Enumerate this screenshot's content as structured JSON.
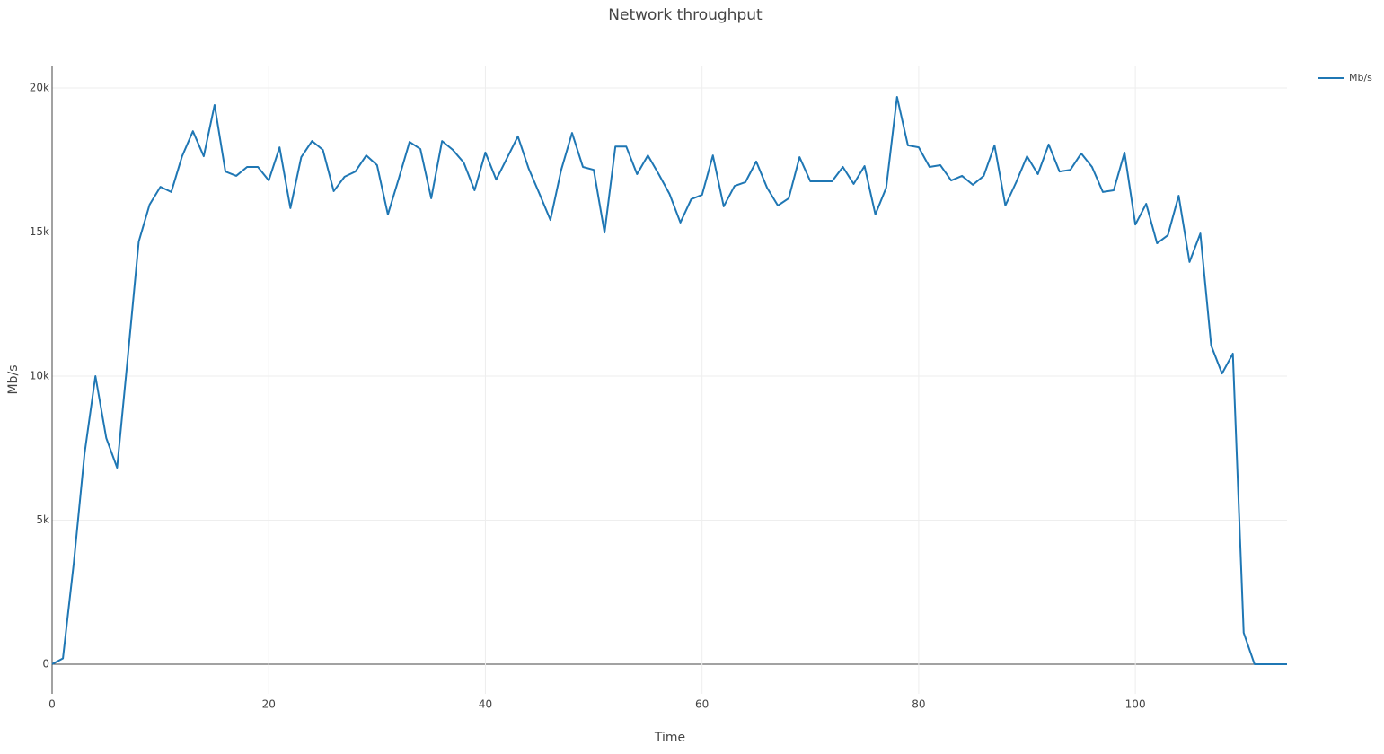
{
  "chart_data": {
    "type": "line",
    "title": "Network throughput",
    "x_label": "Time",
    "y_label": "Mb/s",
    "x": [
      0,
      1,
      2,
      3,
      4,
      5,
      6,
      7,
      8,
      9,
      10,
      11,
      12,
      13,
      14,
      15,
      16,
      17,
      18,
      19,
      20,
      21,
      22,
      23,
      24,
      25,
      26,
      27,
      28,
      29,
      30,
      31,
      32,
      33,
      34,
      35,
      36,
      37,
      38,
      39,
      40,
      41,
      42,
      43,
      44,
      45,
      46,
      47,
      48,
      49,
      50,
      51,
      52,
      53,
      54,
      55,
      56,
      57,
      58,
      59,
      60,
      61,
      62,
      63,
      64,
      65,
      66,
      67,
      68,
      69,
      70,
      71,
      72,
      73,
      74,
      75,
      76,
      77,
      78,
      79,
      80,
      81,
      82,
      83,
      84,
      85,
      86,
      87,
      88,
      89,
      90,
      91,
      92,
      93,
      94,
      95,
      96,
      97,
      98,
      99,
      100,
      101,
      102,
      103,
      104,
      105,
      106,
      107,
      108,
      109,
      110,
      111,
      112,
      113,
      114
    ],
    "series": [
      {
        "name": "Mb/s",
        "color": "#1f77b4",
        "values": [
          0,
          200,
          3500,
          7320,
          10000,
          7850,
          6820,
          10700,
          14670,
          15950,
          16570,
          16390,
          17630,
          18500,
          17630,
          19410,
          17100,
          16950,
          17260,
          17260,
          16790,
          17940,
          15830,
          17600,
          18160,
          17850,
          16420,
          16920,
          17100,
          17660,
          17320,
          15610,
          16850,
          18130,
          17880,
          16170,
          18160,
          17850,
          17410,
          16450,
          17760,
          16820,
          17570,
          18320,
          17200,
          16320,
          15420,
          17160,
          18440,
          17260,
          17160,
          14980,
          17970,
          17970,
          17010,
          17660,
          17010,
          16320,
          15330,
          16140,
          16290,
          17660,
          15890,
          16600,
          16730,
          17450,
          16540,
          15920,
          16170,
          17600,
          16760,
          16760,
          16760,
          17260,
          16670,
          17290,
          15610,
          16540,
          19690,
          18010,
          17940,
          17260,
          17320,
          16790,
          16950,
          16640,
          16950,
          18010,
          15920,
          16730,
          17630,
          17010,
          18040,
          17100,
          17160,
          17730,
          17260,
          16390,
          16450,
          17760,
          15260,
          15980,
          14610,
          14890,
          16260,
          13960,
          14950,
          11060,
          10090,
          10780,
          1090,
          0,
          0,
          0,
          0
        ]
      }
    ],
    "xlim": [
      0,
      114
    ],
    "xticks": [
      0,
      20,
      40,
      60,
      80,
      100
    ],
    "ylim": [
      -1030,
      20780
    ],
    "yticks": [
      0,
      {
        "value": 5000,
        "label": "5k"
      },
      {
        "value": 10000,
        "label": "10k"
      },
      {
        "value": 15000,
        "label": "15k"
      },
      {
        "value": 20000,
        "label": "20k"
      }
    ],
    "grid": true,
    "legend": "top-right"
  }
}
